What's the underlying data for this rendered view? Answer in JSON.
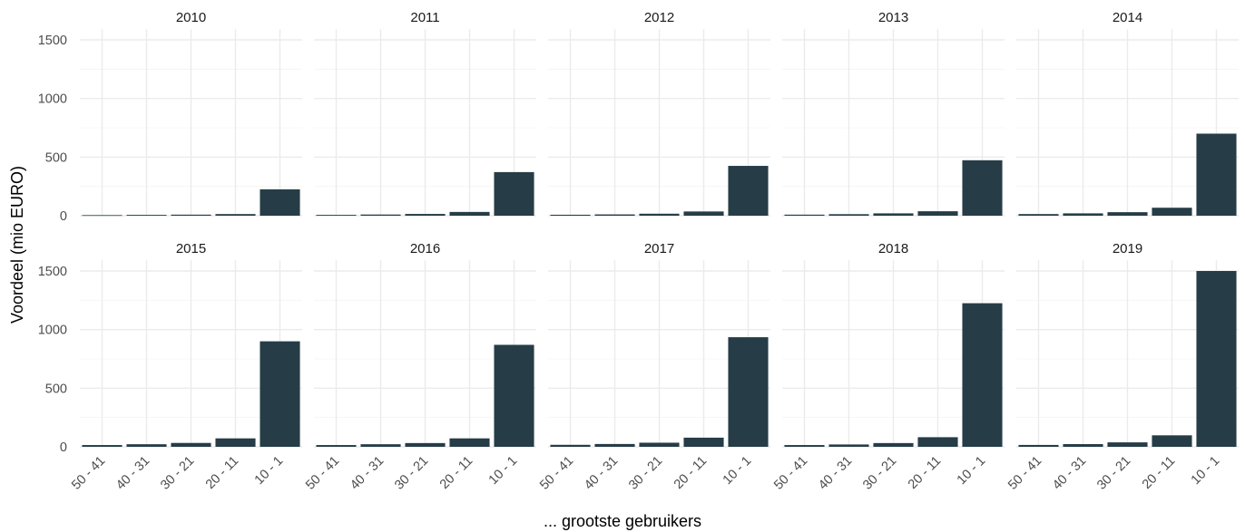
{
  "chart_data": {
    "type": "bar",
    "facet": "year",
    "categories": [
      "50 - 41",
      "40 - 31",
      "30 - 21",
      "20 - 11",
      "10 - 1"
    ],
    "xlabel": "... grootste gebruikers",
    "ylabel": "Voordeel (mio EURO)",
    "ylim": [
      0,
      1500
    ],
    "yticks": [
      0,
      500,
      1000,
      1500
    ],
    "grid": true,
    "bar_color": "#263d47",
    "panels": [
      {
        "name": "2010",
        "values": [
          5,
          7,
          9,
          14,
          225
        ]
      },
      {
        "name": "2011",
        "values": [
          7,
          10,
          15,
          32,
          372
        ]
      },
      {
        "name": "2012",
        "values": [
          8,
          11,
          17,
          36,
          425
        ]
      },
      {
        "name": "2013",
        "values": [
          9,
          13,
          20,
          38,
          473
        ]
      },
      {
        "name": "2014",
        "values": [
          14,
          20,
          30,
          68,
          700
        ]
      },
      {
        "name": "2015",
        "values": [
          15,
          22,
          33,
          72,
          900
        ]
      },
      {
        "name": "2016",
        "values": [
          15,
          22,
          32,
          72,
          870
        ]
      },
      {
        "name": "2017",
        "values": [
          17,
          24,
          35,
          78,
          935
        ]
      },
      {
        "name": "2018",
        "values": [
          15,
          20,
          32,
          82,
          1225
        ]
      },
      {
        "name": "2019",
        "values": [
          16,
          23,
          38,
          98,
          1500
        ]
      }
    ]
  }
}
